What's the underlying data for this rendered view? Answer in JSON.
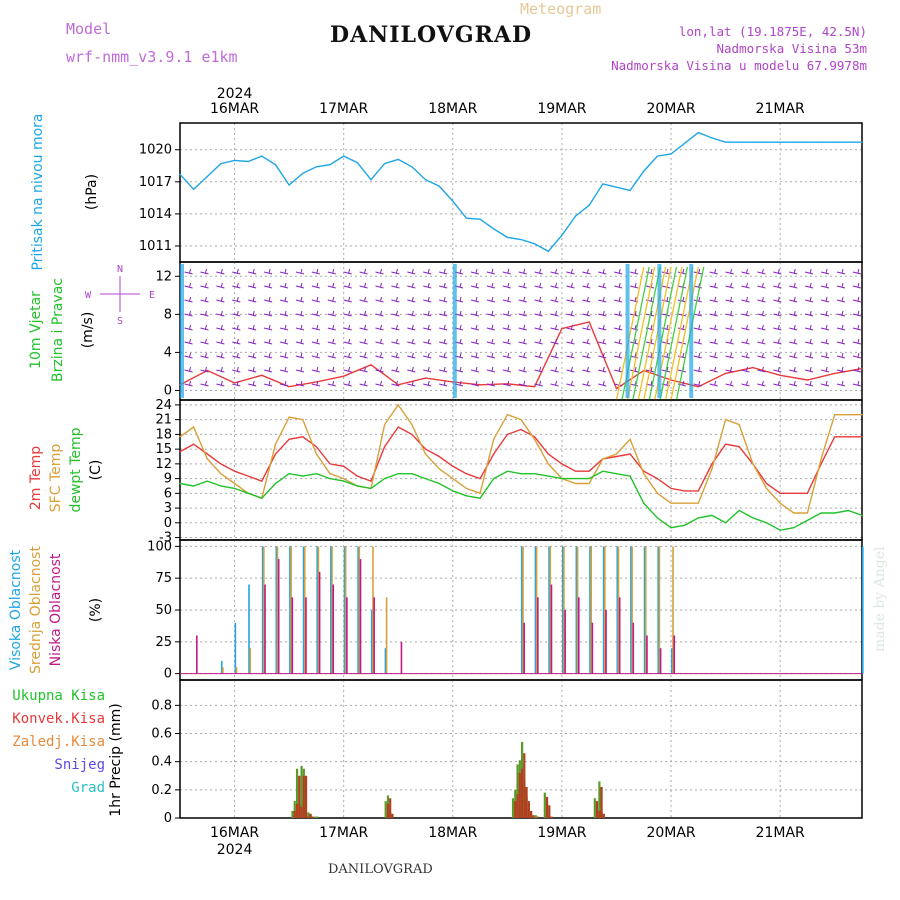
{
  "header": {
    "model_label": "Model",
    "model_name": "wrf-nmm_v3.9.1  e1km",
    "station": "DANILOVGRAD",
    "meteogram": "Meteogram",
    "lonlat": "lon,lat (19.1875E, 42.5N)",
    "altitude": "Nadmorska Visina 53m",
    "model_altitude": "Nadmorska Visina u modelu 67.9978m",
    "footer_station": "DANILOVGRAD",
    "watermark": "made by Angel"
  },
  "colors": {
    "pressure": "#1ea5e6",
    "temp2m": "#e83a3a",
    "sfc": "#d9a03a",
    "dewpt": "#22c22a",
    "high_cloud": "#1ea5e6",
    "mid_cloud": "#d9a03a",
    "low_cloud": "#c01a8a",
    "precip_total": "#5a9a2a",
    "precip_conv": "#b04020",
    "wind_barb": "#8a1ec8",
    "gust": "#e83a3a"
  },
  "chart_data": [
    {
      "type": "line",
      "panel": "pressure",
      "ylabel_1": "Pritisak na nivou mora",
      "ylabel_2": "(hPa)",
      "ylim": [
        1009.5,
        1022.5
      ],
      "yticks": [
        1011,
        1014,
        1017,
        1020
      ],
      "x": [
        0,
        3,
        6,
        9,
        12,
        15,
        18,
        21,
        24,
        27,
        30,
        33,
        36,
        39,
        42,
        45,
        48,
        51,
        54,
        57,
        60,
        63,
        66,
        69,
        72,
        75,
        78,
        81,
        84,
        87,
        90,
        93,
        96,
        99,
        102,
        105,
        108,
        111,
        114,
        117,
        120,
        123,
        126,
        129,
        132,
        135,
        138,
        141,
        144,
        147,
        150
      ],
      "series": [
        {
          "values": [
            1017.7,
            1016.3,
            1017.5,
            1018.7,
            1019,
            1018.9,
            1019.4,
            1018.6,
            1016.7,
            1017.8,
            1018.4,
            1018.6,
            1019.4,
            1018.8,
            1017.2,
            1018.7,
            1019.1,
            1018.4,
            1017.2,
            1016.6,
            1015.2,
            1013.6,
            1013.5,
            1012.6,
            1011.8,
            1011.6,
            1011.2,
            1010.5,
            1012,
            1013.8,
            1014.8,
            1016.8,
            1016.5,
            1016.2,
            1018,
            1019.4,
            1019.6,
            1020.6,
            1021.6,
            1021.1,
            1020.7,
            1020.7,
            1020.7,
            1020.7,
            1020.7,
            1020.7,
            1020.7,
            1020.7,
            1020.7,
            1020.7,
            1020.7
          ]
        }
      ]
    },
    {
      "type": "line",
      "panel": "wind",
      "ylabel_1": "10m Vjetar",
      "ylabel_2": "Brzina i Pravac",
      "ylabel_3": "(m/s)",
      "compass": [
        "N",
        "S",
        "W",
        "E"
      ],
      "ylim": [
        -1,
        13.5
      ],
      "yticks": [
        0,
        4,
        8,
        12
      ],
      "x": [
        0,
        6,
        12,
        18,
        24,
        30,
        36,
        42,
        48,
        54,
        60,
        66,
        72,
        78,
        84,
        90,
        96,
        102,
        108,
        114,
        120,
        126,
        132,
        138,
        144,
        150
      ],
      "series": [
        {
          "name": "speed",
          "values": [
            0.6,
            2.1,
            0.8,
            1.6,
            0.4,
            0.9,
            1.5,
            2.7,
            0.6,
            1.3,
            0.9,
            0.6,
            0.7,
            0.4,
            6.5,
            7.2,
            0.2,
            2.1,
            1.1,
            0.4,
            1.8,
            2.4,
            1.6,
            1.1,
            1.8,
            2.3
          ]
        }
      ]
    },
    {
      "type": "line",
      "panel": "temperature",
      "ylabel_1": "2m Temp",
      "ylabel_2": "SFC Temp",
      "ylabel_3": "dewpt Temp",
      "ylabel_4": "(C)",
      "ylim": [
        -3.5,
        25
      ],
      "yticks": [
        -3,
        0,
        3,
        6,
        9,
        12,
        15,
        18,
        21,
        24
      ],
      "x": [
        0,
        3,
        6,
        9,
        12,
        15,
        18,
        21,
        24,
        27,
        30,
        33,
        36,
        39,
        42,
        45,
        48,
        51,
        54,
        57,
        60,
        63,
        66,
        69,
        72,
        75,
        78,
        81,
        84,
        87,
        90,
        93,
        96,
        99,
        102,
        105,
        108,
        111,
        114,
        117,
        120,
        123,
        126,
        129,
        132,
        135,
        138,
        141,
        144,
        147,
        150
      ],
      "series": [
        {
          "name": "2m Temp",
          "values": [
            14.5,
            16,
            14,
            12,
            10.5,
            9.5,
            8.5,
            14,
            17,
            17.5,
            15.5,
            12,
            11.5,
            9.5,
            8.5,
            15.5,
            19.5,
            18,
            15,
            13.5,
            11.5,
            10,
            9,
            14,
            18,
            19,
            17.5,
            14,
            12,
            10.5,
            10.5,
            13,
            13.5,
            14,
            10.5,
            9,
            7,
            6.5,
            6.5,
            12,
            16,
            15.5,
            12,
            8,
            6,
            6,
            6,
            12,
            17.5,
            17.5,
            17.5
          ]
        },
        {
          "name": "SFC Temp",
          "values": [
            17.5,
            19.5,
            13,
            10,
            8,
            6,
            5,
            16,
            21.5,
            21,
            14,
            10,
            9,
            7.5,
            7,
            20,
            24,
            20,
            14,
            11,
            9,
            7,
            6,
            17,
            22,
            21,
            17,
            12,
            9,
            8,
            8,
            13,
            14,
            17,
            10,
            6,
            4,
            4,
            4,
            11,
            21,
            20,
            12,
            7,
            4,
            2,
            2,
            13,
            22,
            22,
            22
          ]
        },
        {
          "name": "dewpt Temp",
          "values": [
            8,
            7.5,
            8.5,
            7.5,
            7,
            6,
            5,
            8,
            10,
            9.5,
            10,
            9,
            8.5,
            7.5,
            7,
            9,
            10,
            10,
            9,
            8,
            6.5,
            5.5,
            5,
            9,
            10.5,
            10,
            10,
            9.5,
            9,
            9,
            9,
            10.5,
            10,
            9.5,
            4,
            1,
            -1,
            -0.5,
            1,
            1.5,
            0,
            2.5,
            1,
            0,
            -1.5,
            -1,
            0.5,
            2,
            2,
            2.5,
            1.5
          ]
        }
      ]
    },
    {
      "type": "bar",
      "panel": "cloud",
      "ylabel_1": "Visoka Oblacnost",
      "ylabel_2": "Srednja Oblacnost",
      "ylabel_3": "Niska Oblacnost",
      "ylabel_4": "(%)",
      "ylim": [
        -5,
        105
      ],
      "yticks": [
        0,
        25,
        50,
        75,
        100
      ],
      "x": [
        0,
        3,
        6,
        9,
        12,
        15,
        18,
        21,
        24,
        27,
        30,
        33,
        36,
        39,
        42,
        45,
        48,
        51,
        54,
        57,
        60,
        63,
        66,
        69,
        72,
        75,
        78,
        81,
        84,
        87,
        90,
        93,
        96,
        99,
        102,
        105,
        108,
        111,
        114,
        117,
        120,
        123,
        126,
        129,
        132,
        135,
        138,
        141,
        144,
        147,
        150
      ],
      "series": [
        {
          "name": "Visoka Oblacnost",
          "values": [
            0,
            0,
            0,
            10,
            40,
            70,
            100,
            100,
            100,
            100,
            100,
            100,
            100,
            100,
            50,
            20,
            0,
            0,
            0,
            0,
            0,
            0,
            0,
            0,
            0,
            100,
            100,
            100,
            100,
            100,
            100,
            100,
            100,
            100,
            100,
            100,
            20,
            0,
            0,
            0,
            0,
            0,
            0,
            0,
            0,
            0,
            0,
            0,
            0,
            0,
            100
          ]
        },
        {
          "name": "Srednja Oblacnost",
          "values": [
            0,
            0,
            0,
            5,
            5,
            20,
            100,
            100,
            100,
            100,
            100,
            100,
            100,
            100,
            100,
            60,
            0,
            0,
            0,
            0,
            0,
            0,
            0,
            0,
            0,
            100,
            100,
            100,
            100,
            100,
            100,
            100,
            100,
            100,
            100,
            100,
            100,
            0,
            0,
            0,
            0,
            0,
            0,
            0,
            0,
            0,
            0,
            0,
            0,
            0,
            0
          ]
        },
        {
          "name": "Niska Oblacnost",
          "values": [
            0,
            30,
            0,
            0,
            0,
            0,
            70,
            90,
            60,
            60,
            80,
            70,
            60,
            90,
            60,
            0,
            25,
            0,
            0,
            0,
            0,
            0,
            0,
            0,
            0,
            40,
            60,
            70,
            50,
            60,
            40,
            50,
            60,
            40,
            30,
            20,
            30,
            0,
            0,
            0,
            0,
            0,
            0,
            0,
            0,
            0,
            0,
            0,
            0,
            0,
            0
          ]
        }
      ]
    },
    {
      "type": "bar",
      "panel": "precip",
      "legend": [
        "Ukupna Kisa",
        "Konvek.Kisa",
        "Zaledj.Kisa",
        "Snijeg",
        "Grad"
      ],
      "legend_colors": [
        "#22c22a",
        "#e83a3a",
        "#e88a3a",
        "#5a4ae8",
        "#2ac2c2"
      ],
      "ylabel_1": "1hr Precip",
      "ylabel_2": "(mm)",
      "ylim": [
        0,
        0.98
      ],
      "yticks": [
        0,
        0.2,
        0.4,
        0.6,
        0.8
      ],
      "x": [
        24.5,
        25,
        25.5,
        26,
        26.5,
        27,
        27.5,
        28,
        28.5,
        29,
        29.5,
        30,
        45,
        45.5,
        46,
        73,
        73.5,
        74,
        74.5,
        75,
        75.5,
        76,
        76.5,
        77,
        78,
        80,
        80.5,
        81,
        91,
        91.5,
        92,
        92.5
      ],
      "series": [
        {
          "name": "Ukupna Kisa",
          "values": [
            0.05,
            0.12,
            0.35,
            0.1,
            0.37,
            0.35,
            0.02,
            0.04,
            0.02,
            0,
            0.01,
            0.01,
            0.12,
            0.16,
            0.04,
            0.14,
            0.2,
            0.38,
            0.41,
            0.54,
            0.27,
            0.15,
            0.07,
            0.03,
            0.02,
            0.18,
            0.11,
            0.02,
            0.14,
            0.06,
            0.26,
            0.04
          ]
        },
        {
          "name": "Konvek.Kisa",
          "values": [
            0.05,
            0.1,
            0.3,
            0.08,
            0.3,
            0.3,
            0.01,
            0.03,
            0.01,
            0,
            0,
            0,
            0.1,
            0.14,
            0.03,
            0.12,
            0.17,
            0.32,
            0.35,
            0.46,
            0.22,
            0.12,
            0.05,
            0.02,
            0.01,
            0.15,
            0.09,
            0.01,
            0.12,
            0.05,
            0.22,
            0.03
          ]
        }
      ]
    }
  ],
  "axis": {
    "days": [
      "16MAR",
      "17MAR",
      "18MAR",
      "19MAR",
      "20MAR",
      "21MAR"
    ],
    "year": "2024"
  }
}
